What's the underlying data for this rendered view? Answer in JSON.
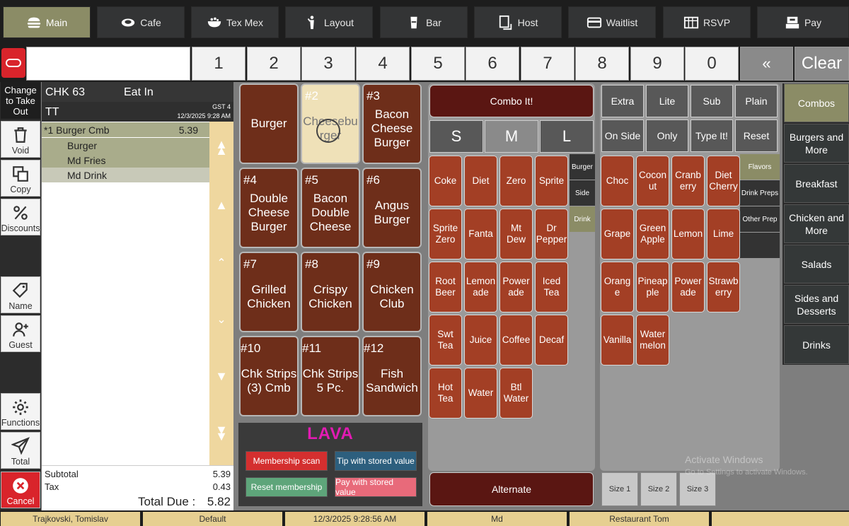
{
  "nav": [
    {
      "label": "Main",
      "icon": "burger-icon",
      "active": true
    },
    {
      "label": "Cafe",
      "icon": "cafe-icon"
    },
    {
      "label": "Tex Mex",
      "icon": "bowl-icon"
    },
    {
      "label": "Layout",
      "icon": "waiter-icon"
    },
    {
      "label": "Bar",
      "icon": "beer-icon"
    },
    {
      "label": "Host",
      "icon": "host-icon"
    },
    {
      "label": "Waitlist",
      "icon": "card-icon"
    },
    {
      "label": "RSVP",
      "icon": "calendar-icon"
    },
    {
      "label": "Pay",
      "icon": "pay-icon"
    }
  ],
  "keypad": {
    "keys": [
      "1",
      "2",
      "3",
      "4",
      "5",
      "6",
      "7",
      "8",
      "9",
      "0"
    ],
    "back": "«",
    "clear": "Clear"
  },
  "sidebar": {
    "takeout": "Change to Take Out",
    "void": "Void",
    "copy": "Copy",
    "discounts": "Discounts",
    "name": "Name",
    "guest": "Guest",
    "functions": "Functions",
    "total": "Total",
    "cancel": "Cancel"
  },
  "check": {
    "number": "CHK 63",
    "mode": "Eat In",
    "server": "TT",
    "gst": "GST 4",
    "datetime": "12/3/2025 9:28 AM",
    "lines": [
      {
        "name": "*1 Burger Cmb",
        "price": "5.39",
        "indent": false
      },
      {
        "name": "Burger",
        "price": "",
        "indent": true
      },
      {
        "name": "Md Fries",
        "price": "",
        "indent": true
      },
      {
        "name": "Md Drink",
        "price": "",
        "indent": true
      }
    ],
    "subtotal_label": "Subtotal",
    "subtotal": "5.39",
    "tax_label": "Tax",
    "tax": "0.43",
    "total_label": "Total Due :",
    "total": "5.82"
  },
  "items": [
    {
      "num": "",
      "name": "Burger"
    },
    {
      "num": "#2",
      "name": "Cheeseburger"
    },
    {
      "num": "#3",
      "name": "Bacon Cheese Burger"
    },
    {
      "num": "#4",
      "name": "Double Cheese Burger"
    },
    {
      "num": "#5",
      "name": "Bacon Double Cheese"
    },
    {
      "num": "#6",
      "name": "Angus Burger"
    },
    {
      "num": "#7",
      "name": "Grilled Chicken"
    },
    {
      "num": "#8",
      "name": "Crispy Chicken"
    },
    {
      "num": "#9",
      "name": "Chicken Club"
    },
    {
      "num": "#10",
      "name": "Chk Strips (3) Cmb"
    },
    {
      "num": "#11",
      "name": "Chk Strips 5 Pc."
    },
    {
      "num": "#12",
      "name": "Fish Sandwich"
    }
  ],
  "lava": {
    "title": "LAVA",
    "membership_scan": "Membership scan",
    "tip_stored": "Tip with stored value",
    "reset_membership": "Reset membership",
    "pay_stored": "Pay with stored value"
  },
  "drinks": {
    "combo": "Combo It!",
    "sizes": [
      "S",
      "M",
      "L"
    ],
    "items": [
      "Coke",
      "Diet",
      "Zero",
      "Sprite",
      "Sprite Zero",
      "Fanta",
      "Mt Dew",
      "Dr Pepper",
      "Root Beer",
      "Lemon ade",
      "Power ade",
      "Iced Tea",
      "Swt Tea",
      "Juice",
      "Coffee",
      "Decaf",
      "Hot Tea",
      "Water",
      "Btl Water"
    ],
    "tabs": [
      "Burger",
      "Side",
      "Drink"
    ],
    "alternate": "Alternate"
  },
  "flavors": {
    "mods": [
      "Extra",
      "Lite",
      "Sub",
      "Plain",
      "On Side",
      "Only",
      "Type It!",
      "Reset"
    ],
    "items": [
      "Choc",
      "Cocon ut",
      "Cranb erry",
      "Diet Cherry",
      "Grape",
      "Green Apple",
      "Lemon",
      "Lime",
      "Orang e",
      "Pineap ple",
      "Power ade",
      "Strawb erry",
      "Vanilla",
      "Water melon"
    ],
    "tabs": [
      "Flavors",
      "Drink Preps",
      "Other Prep"
    ],
    "sizes": [
      "Size 1",
      "Size 2",
      "Size 3"
    ]
  },
  "categories": [
    "Combos",
    "Burgers and More",
    "Breakfast",
    "Chicken and More",
    "Salads",
    "Sides and Desserts",
    "Drinks"
  ],
  "watermark": {
    "title": "Activate Windows",
    "sub": "Go to Settings to activate Windows."
  },
  "status": [
    "Trajkovski, Tomislav",
    "Default",
    "12/3/2025 9:28:56 AM",
    "Md",
    "Restaurant Tom",
    ""
  ]
}
